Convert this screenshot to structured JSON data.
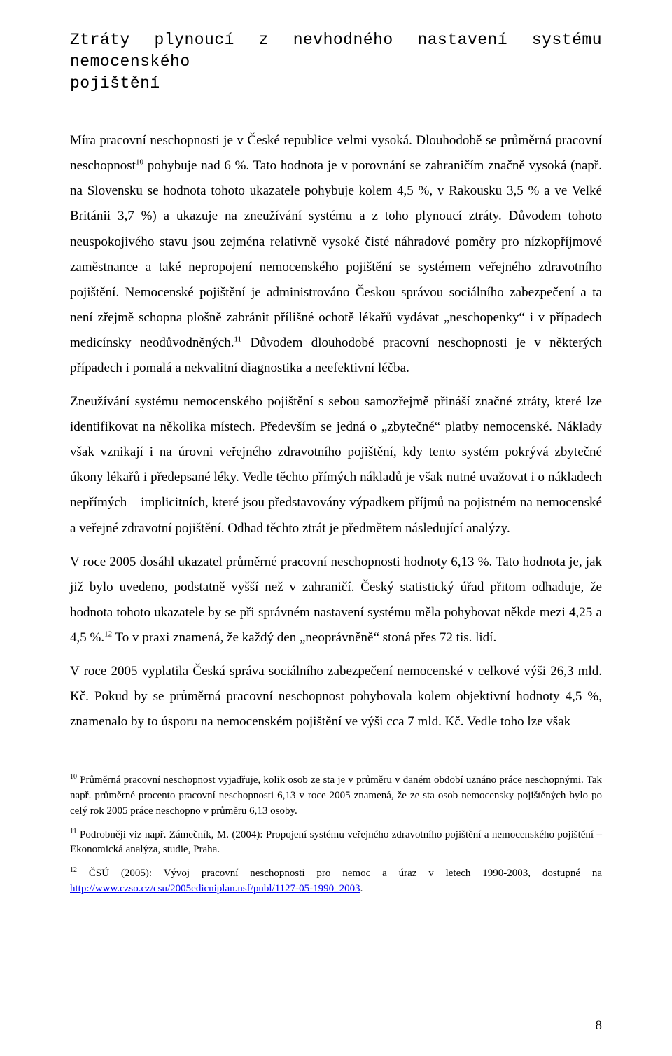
{
  "heading": {
    "line1": "Ztráty plynoucí z nevhodného nastavení systému nemocenského",
    "line2": "pojištění"
  },
  "paragraphs": {
    "p1a": "Míra pracovní neschopnosti je v České republice velmi vysoká. Dlouhodobě se průměrná pracovní neschopnost",
    "p1sup1": "10",
    "p1b": " pohybuje nad 6 %. Tato hodnota je v porovnání se zahraničím značně vysoká (např. na Slovensku se hodnota tohoto ukazatele pohybuje kolem 4,5 %, v Rakousku 3,5 % a ve Velké Británii 3,7 %) a ukazuje na zneužívání systému a z toho plynoucí ztráty. Důvodem tohoto neuspokojivého stavu jsou zejména relativně vysoké čisté náhradové poměry pro nízkopříjmové zaměstnance a také nepropojení nemocenského pojištění se systémem veřejného zdravotního pojištění. Nemocenské pojištění je administrováno Českou správou sociálního zabezpečení a ta není zřejmě schopna plošně zabránit přílišné ochotě lékařů vydávat „neschopenky“ i v případech medicínsky neodůvodněných.",
    "p1sup2": "11",
    "p1c": " Důvodem dlouhodobé pracovní neschopnosti je v některých případech i pomalá a nekvalitní diagnostika a neefektivní léčba.",
    "p2": "Zneužívání systému nemocenského pojištění s sebou samozřejmě přináší značné ztráty, které lze identifikovat na několika místech. Především se jedná o „zbytečné“ platby nemocenské. Náklady však vznikají i na úrovni veřejného zdravotního pojištění, kdy tento systém pokrývá zbytečné úkony lékařů i předepsané léky. Vedle těchto přímých nákladů je však nutné uvažovat i o nákladech nepřímých – implicitních, které jsou představovány výpadkem příjmů na pojistném na nemocenské a veřejné zdravotní pojištění. Odhad těchto ztrát je předmětem následující analýzy.",
    "p3a": "V roce 2005 dosáhl ukazatel průměrné pracovní neschopnosti hodnoty 6,13 %. Tato hodnota je, jak již bylo uvedeno, podstatně vyšší než v zahraničí. Český statistický úřad přitom odhaduje, že hodnota tohoto ukazatele by se při správném nastavení systému měla pohybovat někde mezi 4,25 a 4,5 %.",
    "p3sup": "12",
    "p3b": " To v praxi znamená, že každý den „neoprávněně“ stoná přes 72 tis. lidí.",
    "p4": "V roce 2005 vyplatila Česká správa sociálního zabezpečení nemocenské v celkové výši 26,3 mld. Kč. Pokud by se průměrná pracovní neschopnost pohybovala kolem objektivní hodnoty 4,5 %, znamenalo by to úsporu na nemocenském pojištění ve výši cca 7 mld. Kč. Vedle toho lze však"
  },
  "footnotes": {
    "f10sup": "10",
    "f10": " Průměrná pracovní neschopnost vyjadřuje, kolik osob ze sta je v průměru v daném období uznáno práce neschopnými. Tak např. průměrné procento pracovní neschopnosti 6,13 v roce 2005 znamená, že ze sta osob nemocensky pojištěných bylo po celý rok 2005 práce neschopno v průměru 6,13 osoby.",
    "f11sup": "11",
    "f11": " Podrobněji viz např. Zámečník, M. (2004): Propojení systému veřejného zdravotního pojištění a nemocenského pojištění – Ekonomická analýza, studie, Praha.",
    "f12sup": "12",
    "f12a": " ČSÚ (2005): Vývoj pracovní neschopnosti pro nemoc a úraz v letech 1990-2003, dostupné na ",
    "f12link": "http://www.czso.cz/csu/2005edicniplan.nsf/publ/1127-05-1990_2003",
    "f12b": "."
  },
  "page_number": "8"
}
